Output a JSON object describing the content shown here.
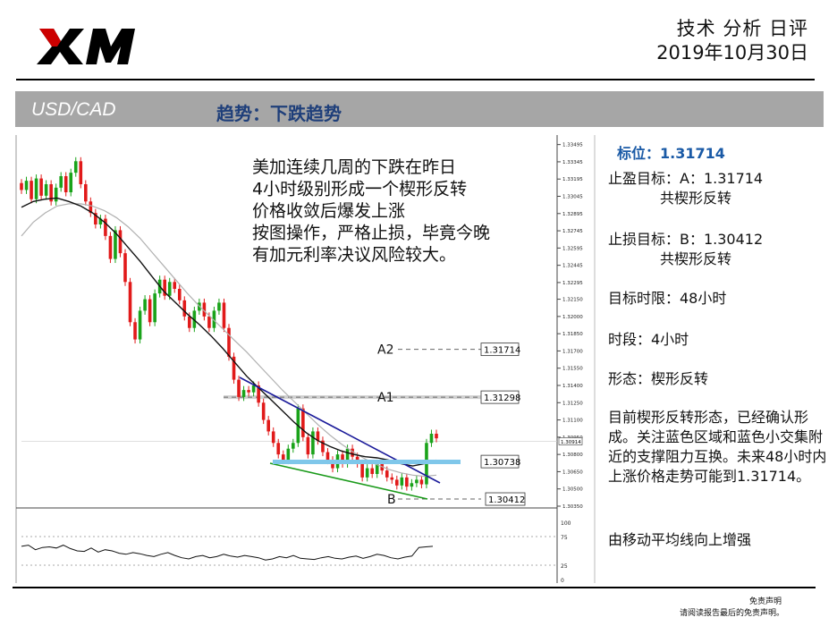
{
  "header": {
    "report_title": "技术 分析 日评",
    "date": "2019年10月30日",
    "brand": "XM"
  },
  "bar": {
    "pair": "USD/CAD",
    "trend": "趋势：下跌趋势"
  },
  "commentary": [
    "美加连续几周的下跌在昨日",
    "4小时级别形成一个楔形反转",
    "价格收敛后爆发上涨",
    "按图操作，严格止损，毕竟今晚",
    "有加元利率决议风险较大。"
  ],
  "side": {
    "biaowei": "标位：1.31714",
    "tp_label": "止盈目标：A：1.31714",
    "tp_note": "共楔形反转",
    "sl_label": "止损目标：B：1.30412",
    "sl_note": "共楔形反转",
    "time_limit": "目标时限：48小时",
    "period": "时段：4小时",
    "pattern": "形态：楔形反转",
    "analysis": "目前楔形反转形态，已经确认形成。关注蓝色区域和蓝色小交集附近的支撑阻力互换。未来48小时内上涨价格走势可能到1.31714。",
    "ma_note": "由移动平均线向上增强"
  },
  "footer": {
    "line1": "免责声明",
    "line2": "请阅读报告最后的免责声明。"
  },
  "chart_data": {
    "type": "candlestick",
    "symbol": "USD/CAD",
    "timeframe": "H4",
    "ylim": [
      1.3035,
      1.335
    ],
    "y_ticks": [
      "1.33495",
      "1.33345",
      "1.33195",
      "1.33045",
      "1.32895",
      "1.32745",
      "1.32595",
      "1.32445",
      "1.32295",
      "1.32150",
      "1.32000",
      "1.31850",
      "1.31700",
      "1.31550",
      "1.31400",
      "1.31250",
      "1.31100",
      "1.30950",
      "1.30800",
      "1.30650",
      "1.30500",
      "1.30350"
    ],
    "current_price": "1.30914",
    "levels": [
      {
        "name": "A2",
        "value": 1.31714,
        "label": "1.31714"
      },
      {
        "name": "A1",
        "value": 1.31298,
        "label": "1.31298"
      },
      {
        "name": "",
        "value": 1.30738,
        "label": "1.30738"
      },
      {
        "name": "B",
        "value": 1.30412,
        "label": "1.30412"
      }
    ],
    "closes": [
      1.331,
      1.3318,
      1.3302,
      1.332,
      1.3305,
      1.3315,
      1.33,
      1.3312,
      1.3322,
      1.3308,
      1.3325,
      1.3335,
      1.3315,
      1.33,
      1.329,
      1.328,
      1.3285,
      1.327,
      1.325,
      1.3275,
      1.3255,
      1.323,
      1.3195,
      1.318,
      1.3205,
      1.3215,
      1.3195,
      1.322,
      1.3232,
      1.3218,
      1.323,
      1.3224,
      1.3214,
      1.32,
      1.319,
      1.3205,
      1.3212,
      1.32,
      1.319,
      1.3205,
      1.3212,
      1.319,
      1.3165,
      1.3145,
      1.313,
      1.3136,
      1.3134,
      1.314,
      1.3125,
      1.311,
      1.31,
      1.309,
      1.308,
      1.3075,
      1.3085,
      1.309,
      1.312,
      1.3095,
      1.308,
      1.31,
      1.3092,
      1.3082,
      1.3075,
      1.3068,
      1.308,
      1.3072,
      1.3085,
      1.3078,
      1.3072,
      1.306,
      1.3068,
      1.3063,
      1.3072,
      1.3066,
      1.306,
      1.3058,
      1.3053,
      1.306,
      1.3052,
      1.3055,
      1.3058,
      1.3054,
      1.309,
      1.3098,
      1.3094
    ],
    "ma_fast": [
      1.3295,
      1.33,
      1.3302,
      1.3303,
      1.33,
      1.3296,
      1.329,
      1.3282,
      1.3272,
      1.326,
      1.3248,
      1.3235,
      1.3222,
      1.3212,
      1.3202,
      1.3193,
      1.3183,
      1.3172,
      1.316,
      1.3148,
      1.3138,
      1.3128,
      1.3118,
      1.3108,
      1.3099,
      1.3092,
      1.3087,
      1.3083,
      1.308,
      1.3078,
      1.3077,
      1.3075,
      1.3072,
      1.307,
      1.3072,
      1.3075
    ],
    "ma_slow": [
      1.327,
      1.3282,
      1.329,
      1.3296,
      1.3298,
      1.3298,
      1.3296,
      1.3292,
      1.3286,
      1.3278,
      1.3268,
      1.3256,
      1.3244,
      1.3232,
      1.322,
      1.3209,
      1.3199,
      1.3189,
      1.3179,
      1.3169,
      1.3158,
      1.3147,
      1.3136,
      1.3126,
      1.3116,
      1.3106,
      1.3097,
      1.3089,
      1.3082,
      1.3076,
      1.3071,
      1.3067,
      1.3064,
      1.3062,
      1.3061,
      1.3062
    ],
    "oscillator_ticks": [
      "100",
      "75",
      "25",
      "0"
    ],
    "oscillator": [
      58,
      60,
      52,
      56,
      57,
      55,
      60,
      54,
      50,
      49,
      55,
      48,
      52,
      50,
      46,
      44,
      47,
      45,
      42,
      40,
      44,
      47,
      42,
      38,
      36,
      40,
      42,
      38,
      40,
      44,
      41,
      39,
      42,
      40,
      38,
      34,
      36,
      40,
      38,
      42,
      37,
      36,
      35,
      38,
      40,
      37,
      36,
      39,
      41,
      37,
      40,
      44,
      42,
      38,
      36,
      39,
      41,
      56,
      57,
      58
    ]
  }
}
